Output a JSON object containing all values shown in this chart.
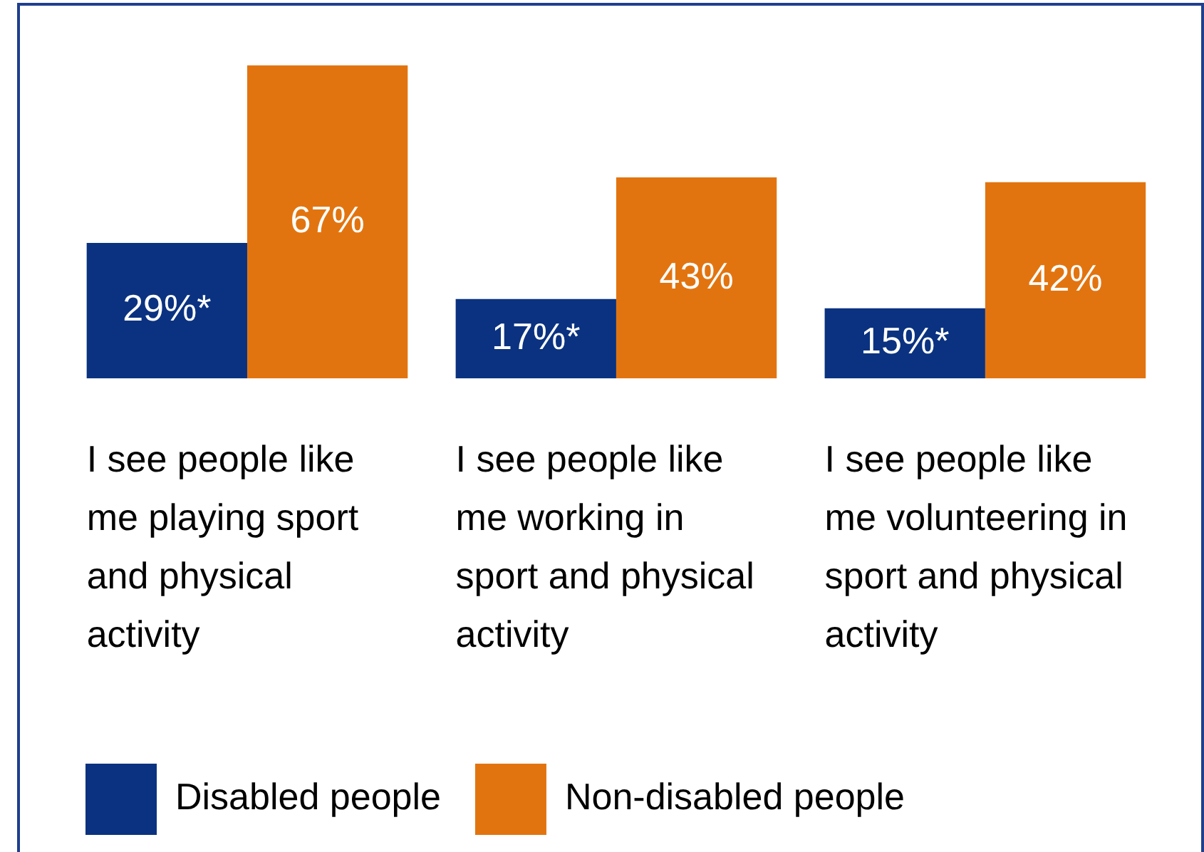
{
  "chart_data": {
    "type": "bar",
    "categories": [
      "I see people like me playing sport and physical activity",
      "I see people like me working in sport and physical activity",
      "I see people like me volunteering in sport and physical activity"
    ],
    "series": [
      {
        "name": "Disabled people",
        "color": "#0a3280",
        "values": [
          29,
          17,
          15
        ],
        "value_labels": [
          "29%*",
          "17%*",
          "15%*"
        ]
      },
      {
        "name": "Non-disabled people",
        "color": "#e2740f",
        "values": [
          67,
          43,
          42
        ],
        "value_labels": [
          "67%",
          "43%",
          "42%"
        ]
      }
    ],
    "relative": false,
    "legend": "bottom left",
    "grid": false
  }
}
